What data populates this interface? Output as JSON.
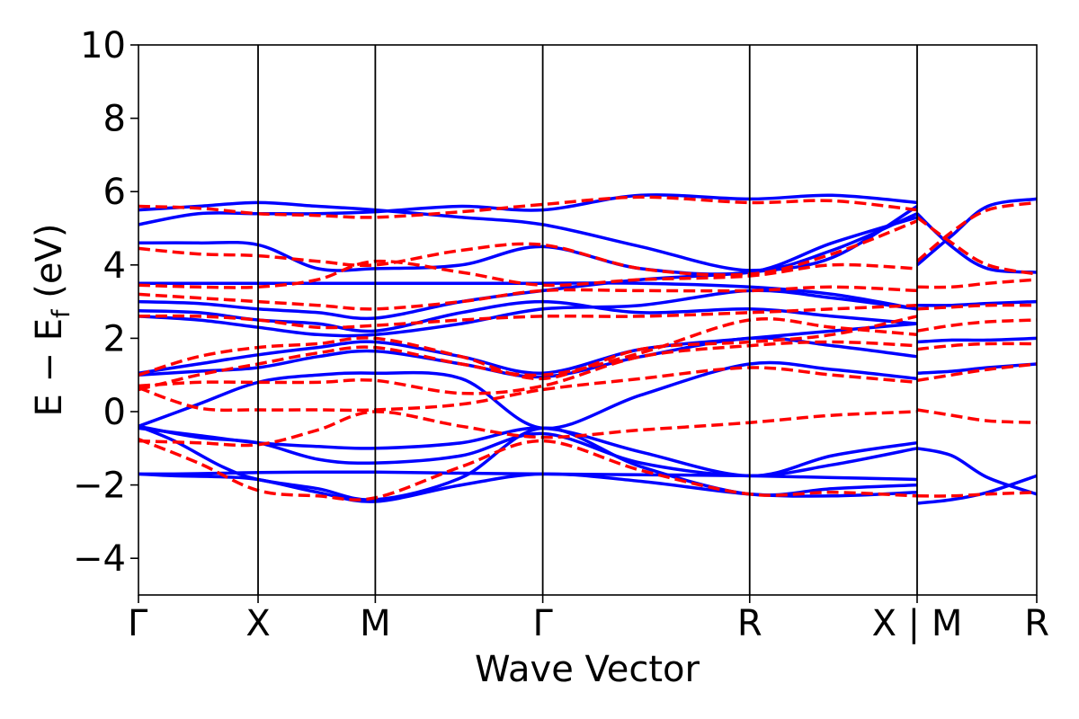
{
  "chart_data": {
    "type": "line",
    "title": "",
    "xlabel": "Wave Vector",
    "ylabel": "E − E_f (eV)",
    "ylabel_parts": {
      "main": "E − E",
      "sub": "f",
      "unit": " (eV)"
    },
    "ylim": [
      -5,
      10
    ],
    "yticks": [
      -4,
      -2,
      0,
      2,
      4,
      6,
      8,
      10
    ],
    "ytick_labels": [
      "−4",
      "−2",
      "0",
      "2",
      "4",
      "6",
      "8",
      "10"
    ],
    "k_points": [
      0,
      1.0,
      1.98,
      3.38,
      5.11,
      6.51,
      7.51
    ],
    "k_labels": [
      "Γ",
      "X",
      "M",
      "Γ",
      "R",
      "X | M",
      "R"
    ],
    "grid": false,
    "legend": "none",
    "series": [
      {
        "color": "#0000ff",
        "style": "solid",
        "bands": [
          {
            "x": [
              0,
              0.3,
              0.7,
              1.0,
              1.5,
              1.98,
              2.7,
              3.38,
              4.2,
              5.11,
              5.8,
              6.51
            ],
            "y": [
              -1.7,
              -1.7,
              -1.68,
              -1.66,
              -1.65,
              -1.65,
              -1.68,
              -1.7,
              -1.72,
              -1.75,
              -1.8,
              -1.85
            ]
          },
          {
            "x": [
              0,
              0.3,
              0.7,
              1.0,
              1.5,
              1.98,
              2.7,
              3.38,
              4.2,
              5.11,
              5.8,
              6.51
            ],
            "y": [
              -1.7,
              -1.75,
              -1.78,
              -1.85,
              -2.2,
              -2.45,
              -2.0,
              -1.7,
              -1.9,
              -2.25,
              -2.3,
              -2.2
            ]
          },
          {
            "x": [
              0,
              0.3,
              0.7,
              1.0,
              1.5,
              1.98,
              2.7,
              3.38,
              4.2,
              5.11,
              5.8,
              6.51
            ],
            "y": [
              -0.4,
              -0.8,
              -1.5,
              -1.85,
              -2.1,
              -2.4,
              -1.8,
              -0.45,
              -1.5,
              -2.25,
              -2.1,
              -2.0
            ]
          },
          {
            "x": [
              0,
              0.5,
              1.0,
              1.5,
              1.98,
              2.7,
              3.38,
              4.2,
              5.11,
              5.8,
              6.51
            ],
            "y": [
              -0.4,
              -0.7,
              -0.85,
              -1.3,
              -1.4,
              -1.2,
              -0.6,
              -1.4,
              -1.75,
              -1.45,
              -1.0
            ]
          },
          {
            "x": [
              0,
              0.5,
              1.0,
              1.5,
              1.98,
              2.7,
              3.38,
              4.2,
              5.11,
              5.8,
              6.51
            ],
            "y": [
              -0.45,
              -0.65,
              -0.85,
              -0.95,
              -1.0,
              -0.85,
              -0.45,
              -1.1,
              -1.75,
              -1.2,
              -0.85
            ]
          },
          {
            "x": [
              0,
              0.5,
              1.0,
              1.5,
              1.98,
              2.7,
              3.38,
              4.2,
              5.11,
              5.8,
              6.51
            ],
            "y": [
              -0.4,
              0.2,
              0.8,
              1.0,
              1.05,
              0.9,
              -0.45,
              0.45,
              1.3,
              1.15,
              0.9
            ]
          },
          {
            "x": [
              0,
              0.5,
              1.0,
              1.5,
              1.98,
              2.7,
              3.38,
              4.2,
              5.11,
              5.8,
              6.51
            ],
            "y": [
              1.0,
              1.1,
              1.2,
              1.5,
              1.65,
              1.3,
              0.95,
              1.5,
              2.0,
              1.8,
              1.5
            ]
          },
          {
            "x": [
              0,
              0.5,
              1.0,
              1.5,
              1.98,
              2.7,
              3.38,
              4.2,
              5.11,
              5.8,
              6.51
            ],
            "y": [
              1.05,
              1.3,
              1.55,
              1.75,
              1.9,
              1.5,
              1.05,
              1.7,
              2.0,
              2.2,
              2.4
            ]
          },
          {
            "x": [
              0,
              0.5,
              1.0,
              1.5,
              1.98,
              2.7,
              3.38,
              4.2,
              5.11,
              5.8,
              6.51
            ],
            "y": [
              2.6,
              2.5,
              2.3,
              2.1,
              2.1,
              2.4,
              2.8,
              2.9,
              3.3,
              3.1,
              2.8
            ]
          },
          {
            "x": [
              0,
              0.5,
              1.0,
              1.5,
              1.98,
              2.7,
              3.38,
              4.2,
              5.11,
              5.8,
              6.51
            ],
            "y": [
              2.75,
              2.7,
              2.5,
              2.4,
              2.2,
              2.7,
              3.0,
              2.7,
              2.8,
              2.6,
              2.4
            ]
          },
          {
            "x": [
              0,
              0.5,
              1.0,
              1.5,
              1.98,
              2.7,
              3.38,
              4.2,
              5.11,
              5.8,
              6.51
            ],
            "y": [
              3.0,
              2.95,
              2.8,
              2.7,
              2.55,
              3.0,
              3.3,
              3.6,
              3.8,
              4.2,
              5.6
            ]
          },
          {
            "x": [
              0,
              0.5,
              1.0,
              1.5,
              1.98,
              2.7,
              3.38,
              4.2,
              5.11,
              5.8,
              6.51
            ],
            "y": [
              3.5,
              3.5,
              3.5,
              3.5,
              3.5,
              3.5,
              3.5,
              3.5,
              3.4,
              3.2,
              2.8
            ]
          },
          {
            "x": [
              0,
              0.5,
              1.0,
              1.5,
              1.98,
              2.7,
              3.38,
              4.2,
              5.11,
              5.8,
              6.51
            ],
            "y": [
              4.6,
              4.6,
              4.55,
              3.9,
              3.9,
              4.0,
              4.5,
              3.9,
              3.8,
              4.6,
              5.3
            ]
          },
          {
            "x": [
              0,
              0.5,
              1.0,
              1.5,
              1.98,
              2.7,
              3.38,
              4.2,
              5.11,
              5.8,
              6.51
            ],
            "y": [
              5.1,
              5.4,
              5.4,
              5.4,
              5.45,
              5.6,
              5.5,
              5.9,
              5.8,
              5.9,
              5.7
            ]
          },
          {
            "x": [
              0,
              0.5,
              1.0,
              1.5,
              1.98,
              2.7,
              3.38,
              4.2,
              5.11,
              5.8,
              6.51
            ],
            "y": [
              5.5,
              5.6,
              5.7,
              5.6,
              5.5,
              5.3,
              5.1,
              4.5,
              3.85,
              4.4,
              5.4
            ]
          },
          {
            "x": [
              6.51,
              6.8,
              7.1,
              7.51
            ],
            "y": [
              -2.5,
              -2.4,
              -2.2,
              -1.75
            ]
          },
          {
            "x": [
              6.51,
              6.8,
              7.1,
              7.51
            ],
            "y": [
              -1.0,
              -1.2,
              -1.8,
              -2.25
            ]
          },
          {
            "x": [
              6.51,
              6.8,
              7.1,
              7.51
            ],
            "y": [
              1.05,
              1.1,
              1.2,
              1.3
            ]
          },
          {
            "x": [
              6.51,
              6.8,
              7.1,
              7.51
            ],
            "y": [
              1.9,
              1.95,
              1.95,
              2.0
            ]
          },
          {
            "x": [
              6.51,
              6.8,
              7.1,
              7.51
            ],
            "y": [
              2.9,
              2.9,
              2.95,
              3.0
            ]
          },
          {
            "x": [
              6.51,
              6.8,
              7.1,
              7.51
            ],
            "y": [
              4.0,
              4.8,
              5.6,
              5.8
            ]
          },
          {
            "x": [
              6.51,
              6.8,
              7.1,
              7.51
            ],
            "y": [
              5.4,
              4.5,
              3.9,
              3.8
            ]
          }
        ]
      },
      {
        "color": "#ff0000",
        "style": "dashed",
        "bands": [
          {
            "x": [
              0,
              0.5,
              1.0,
              1.5,
              1.98,
              2.7,
              3.38,
              4.2,
              5.11,
              5.8,
              6.51
            ],
            "y": [
              -0.75,
              -1.4,
              -2.15,
              -2.3,
              -2.35,
              -1.5,
              -0.8,
              -1.6,
              -2.25,
              -2.2,
              -2.3
            ]
          },
          {
            "x": [
              0,
              0.5,
              1.0,
              1.5,
              1.98,
              2.7,
              3.38,
              4.2,
              5.11,
              5.8,
              6.51
            ],
            "y": [
              -0.8,
              -0.85,
              -0.9,
              -0.5,
              0.0,
              -0.4,
              -0.7,
              -0.5,
              -0.3,
              -0.1,
              0.0
            ]
          },
          {
            "x": [
              0,
              0.5,
              1.0,
              1.5,
              1.98,
              2.7,
              3.38,
              4.2,
              5.11,
              5.8,
              6.51
            ],
            "y": [
              0.65,
              0.1,
              0.05,
              0.05,
              0.05,
              0.2,
              0.6,
              0.9,
              1.2,
              1.0,
              0.8
            ]
          },
          {
            "x": [
              0,
              0.5,
              1.0,
              1.5,
              1.98,
              2.7,
              3.38,
              4.2,
              5.11,
              5.8,
              6.51
            ],
            "y": [
              0.7,
              0.8,
              0.8,
              0.8,
              0.85,
              0.5,
              0.7,
              1.5,
              1.8,
              1.9,
              1.8
            ]
          },
          {
            "x": [
              0,
              0.5,
              1.0,
              1.5,
              1.98,
              2.7,
              3.38,
              4.2,
              5.11,
              5.8,
              6.51
            ],
            "y": [
              0.6,
              1.0,
              1.3,
              1.6,
              1.75,
              1.3,
              1.0,
              1.6,
              2.5,
              2.3,
              2.1
            ]
          },
          {
            "x": [
              0,
              0.5,
              1.0,
              1.5,
              1.98,
              2.7,
              3.38,
              4.2,
              5.11,
              5.8,
              6.51
            ],
            "y": [
              1.0,
              1.5,
              1.75,
              1.85,
              2.0,
              1.5,
              0.9,
              1.7,
              1.9,
              2.1,
              2.6
            ]
          },
          {
            "x": [
              0,
              0.5,
              1.0,
              1.5,
              1.98,
              2.7,
              3.38,
              4.2,
              5.11,
              5.8,
              6.51
            ],
            "y": [
              2.6,
              2.6,
              2.5,
              2.3,
              2.35,
              2.5,
              2.6,
              2.6,
              2.7,
              2.8,
              2.9
            ]
          },
          {
            "x": [
              0,
              0.5,
              1.0,
              1.5,
              1.98,
              2.7,
              3.38,
              4.2,
              5.11,
              5.8,
              6.51
            ],
            "y": [
              3.2,
              3.1,
              3.0,
              2.9,
              2.8,
              3.0,
              3.3,
              3.3,
              3.3,
              3.4,
              3.3
            ]
          },
          {
            "x": [
              0,
              0.5,
              1.0,
              1.5,
              1.98,
              2.7,
              3.38,
              4.2,
              5.11,
              5.8,
              6.51
            ],
            "y": [
              3.45,
              3.4,
              3.4,
              3.6,
              4.1,
              3.8,
              3.45,
              3.6,
              3.7,
              4.0,
              3.9
            ]
          },
          {
            "x": [
              0,
              0.5,
              1.0,
              1.5,
              1.98,
              2.7,
              3.38,
              4.2,
              5.11,
              5.8,
              6.51
            ],
            "y": [
              4.45,
              4.3,
              4.25,
              4.1,
              4.0,
              4.4,
              4.55,
              3.9,
              3.75,
              4.3,
              5.2
            ]
          },
          {
            "x": [
              0,
              0.5,
              1.0,
              1.5,
              1.98,
              2.7,
              3.38,
              4.2,
              5.11,
              5.8,
              6.51
            ],
            "y": [
              5.6,
              5.55,
              5.4,
              5.35,
              5.3,
              5.45,
              5.65,
              5.85,
              5.7,
              5.75,
              5.5
            ]
          },
          {
            "x": [
              6.51,
              6.8,
              7.1,
              7.51
            ],
            "y": [
              -2.3,
              -2.3,
              -2.25,
              -2.2
            ]
          },
          {
            "x": [
              6.51,
              6.8,
              7.1,
              7.51
            ],
            "y": [
              0.05,
              -0.1,
              -0.25,
              -0.3
            ]
          },
          {
            "x": [
              6.51,
              6.8,
              7.1,
              7.51
            ],
            "y": [
              0.85,
              1.0,
              1.15,
              1.3
            ]
          },
          {
            "x": [
              6.51,
              6.8,
              7.1,
              7.51
            ],
            "y": [
              1.7,
              1.8,
              1.85,
              1.85
            ]
          },
          {
            "x": [
              6.51,
              6.8,
              7.1,
              7.51
            ],
            "y": [
              2.2,
              2.35,
              2.45,
              2.5
            ]
          },
          {
            "x": [
              6.51,
              6.8,
              7.1,
              7.51
            ],
            "y": [
              2.8,
              2.85,
              2.9,
              2.9
            ]
          },
          {
            "x": [
              6.51,
              6.8,
              7.1,
              7.51
            ],
            "y": [
              3.4,
              3.4,
              3.5,
              3.6
            ]
          },
          {
            "x": [
              6.51,
              6.8,
              7.1,
              7.51
            ],
            "y": [
              5.3,
              4.6,
              4.0,
              3.75
            ]
          },
          {
            "x": [
              6.51,
              6.8,
              7.1,
              7.51
            ],
            "y": [
              4.1,
              4.9,
              5.5,
              5.7
            ]
          }
        ]
      }
    ]
  }
}
